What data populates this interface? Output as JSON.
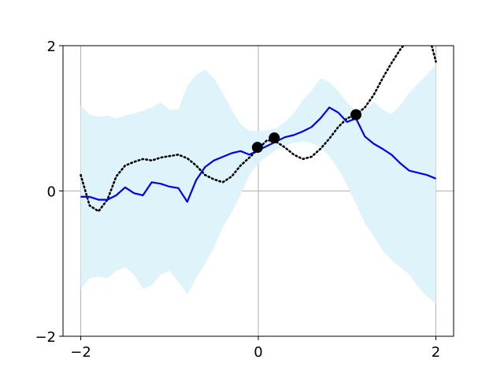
{
  "chart_data": {
    "type": "line",
    "title": "",
    "xlabel": "",
    "ylabel": "",
    "xlim": [
      -2.2,
      2.2
    ],
    "ylim": [
      -2,
      2
    ],
    "grid": true,
    "legend": "none",
    "xticks": [
      {
        "value": -2,
        "label": "−2"
      },
      {
        "value": 0,
        "label": "0"
      },
      {
        "value": 2,
        "label": "2"
      }
    ],
    "yticks": [
      {
        "value": -2,
        "label": "−2"
      },
      {
        "value": 0,
        "label": "0"
      },
      {
        "value": 2,
        "label": "2"
      }
    ],
    "colors": {
      "mean": "#0000ee",
      "band": "#dff3fb",
      "truth": "#000000",
      "points": "#000000",
      "grid": "#b0b0b0"
    },
    "x": [
      -2.0,
      -1.9,
      -1.8,
      -1.7,
      -1.6,
      -1.5,
      -1.4,
      -1.3,
      -1.2,
      -1.1,
      -1.0,
      -0.9,
      -0.8,
      -0.7,
      -0.6,
      -0.5,
      -0.4,
      -0.3,
      -0.2,
      -0.1,
      0.0,
      0.1,
      0.2,
      0.3,
      0.4,
      0.5,
      0.6,
      0.7,
      0.8,
      0.9,
      1.0,
      1.1,
      1.2,
      1.3,
      1.4,
      1.5,
      1.6,
      1.7,
      1.8,
      1.9,
      2.0
    ],
    "series": [
      {
        "role": "upper",
        "values": [
          1.18,
          1.05,
          1.02,
          1.04,
          1.0,
          1.04,
          1.07,
          1.1,
          1.15,
          1.22,
          1.12,
          1.12,
          1.45,
          1.6,
          1.67,
          1.55,
          1.35,
          1.12,
          0.92,
          0.83,
          0.82,
          0.84,
          0.86,
          0.95,
          1.07,
          1.25,
          1.38,
          1.55,
          1.5,
          1.38,
          1.22,
          1.1,
          1.13,
          1.23,
          1.12,
          1.06,
          1.18,
          1.35,
          1.48,
          1.6,
          1.74
        ]
      },
      {
        "role": "lower",
        "values": [
          -1.35,
          -1.2,
          -1.18,
          -1.2,
          -1.1,
          -1.05,
          -1.15,
          -1.35,
          -1.3,
          -1.15,
          -1.1,
          -1.25,
          -1.42,
          -1.2,
          -1.0,
          -0.78,
          -0.5,
          -0.3,
          -0.05,
          0.22,
          0.38,
          0.48,
          0.56,
          0.62,
          0.66,
          0.68,
          0.66,
          0.6,
          0.48,
          0.3,
          0.08,
          -0.18,
          -0.44,
          -0.62,
          -0.82,
          -0.95,
          -1.05,
          -1.15,
          -1.32,
          -1.45,
          -1.55
        ]
      },
      {
        "role": "mean",
        "values": [
          -0.08,
          -0.08,
          -0.12,
          -0.12,
          -0.06,
          0.05,
          -0.03,
          -0.06,
          0.12,
          0.1,
          0.06,
          0.04,
          -0.15,
          0.15,
          0.33,
          0.42,
          0.47,
          0.52,
          0.55,
          0.5,
          0.56,
          0.62,
          0.68,
          0.74,
          0.77,
          0.82,
          0.88,
          1.0,
          1.15,
          1.08,
          0.95,
          1.0,
          0.75,
          0.65,
          0.58,
          0.5,
          0.38,
          0.28,
          0.25,
          0.22,
          0.17
        ]
      },
      {
        "role": "truth",
        "values": [
          0.22,
          -0.2,
          -0.28,
          -0.12,
          0.2,
          0.35,
          0.4,
          0.44,
          0.42,
          0.46,
          0.48,
          0.5,
          0.45,
          0.35,
          0.22,
          0.16,
          0.12,
          0.2,
          0.35,
          0.46,
          0.58,
          0.7,
          0.68,
          0.6,
          0.5,
          0.44,
          0.47,
          0.58,
          0.72,
          0.88,
          1.0,
          1.05,
          1.15,
          1.32,
          1.55,
          1.76,
          1.95,
          2.1,
          2.2,
          2.25,
          1.78
        ]
      }
    ],
    "points": [
      {
        "x": -0.01,
        "y": 0.6
      },
      {
        "x": 0.18,
        "y": 0.73
      },
      {
        "x": 1.1,
        "y": 1.05
      }
    ]
  }
}
